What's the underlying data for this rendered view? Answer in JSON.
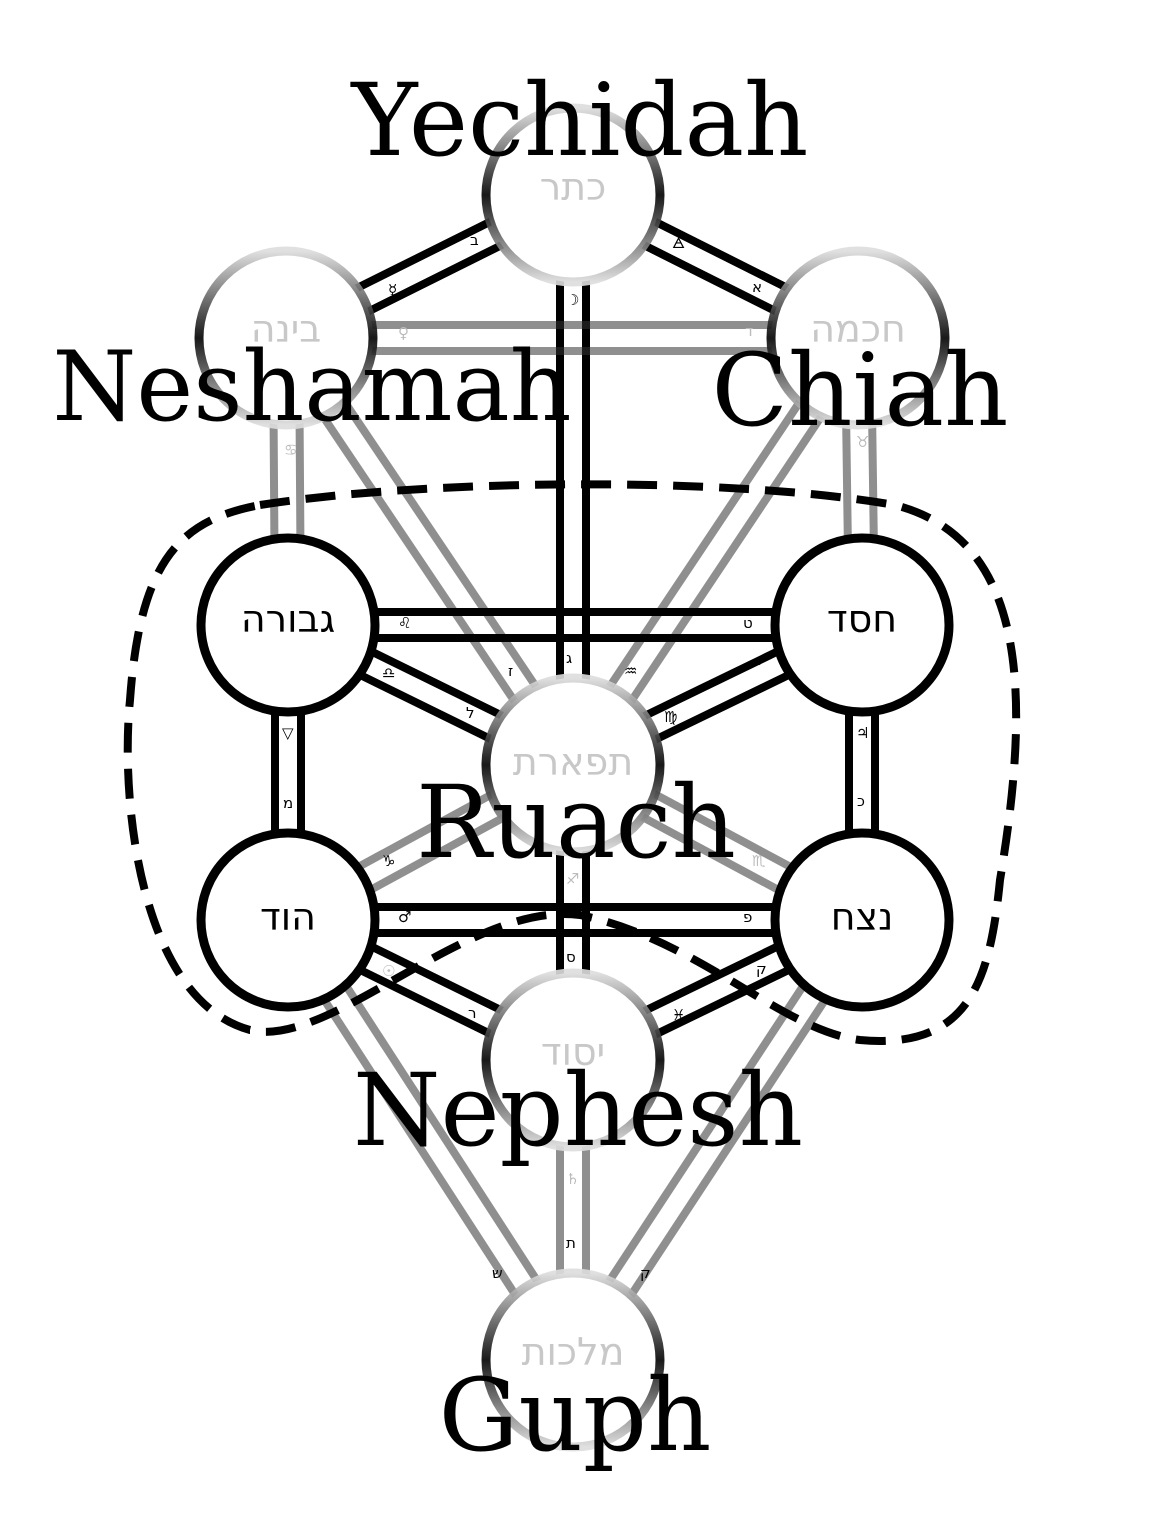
{
  "soul_labels": {
    "yechidah": "Yechidah",
    "neshamah": "Neshamah",
    "chiah": "Chiah",
    "ruach": "Ruach",
    "nephesh": "Nephesh",
    "guph": "Guph"
  },
  "sephiroth": {
    "keter": "כתר",
    "binah": "בינה",
    "chokmah": "חכמה",
    "gevurah": "גבורה",
    "chesed": "חסד",
    "tiferet": "תפארת",
    "hod": "הוד",
    "netzach": "נצח",
    "yesod": "יסוד",
    "malkuth": "מלכות"
  },
  "path_glyphs": {
    "keter_binah": "ב",
    "keter_binah_sym": "☿",
    "keter_chokmah": "א",
    "keter_chokmah_sym": "🜁",
    "keter_tiferet": "ג",
    "keter_tiferet_sym": "☽",
    "binah_chokmah": "ד",
    "binah_chokmah_sym": "♀",
    "binah_gevurah": "ח",
    "binah_gevurah_sym": "♋",
    "chokmah_chesed": "ו",
    "chokmah_chesed_sym": "♉",
    "gevurah_chesed": "ט",
    "gevurah_chesed_sym": "♌",
    "gevurah_tiferet": "ל",
    "gevurah_tiferet_sym": "♎",
    "chesed_tiferet": "י",
    "chesed_tiferet_sym": "♍",
    "binah_tiferet": "ז",
    "chokmah_tiferet": "ה",
    "chokmah_tiferet_sym": "♒",
    "gevurah_hod": "מ",
    "gevurah_hod_sym": "▽",
    "chesed_netzach": "כ",
    "chesed_netzach_sym": "♃",
    "hod_netzach": "פ",
    "hod_netzach_sym": "♂",
    "hod_yesod": "ר",
    "hod_yesod_sym": "☉",
    "netzach_yesod": "ק",
    "netzach_yesod_sym": "♓",
    "tiferet_yesod": "ס",
    "tiferet_yesod_sym": "♐",
    "yesod_malkuth": "ת",
    "yesod_malkuth_sym": "♄",
    "hod_malkuth": "ש",
    "netzach_malkuth": "ק",
    "tiferet_hod_sym": "♑",
    "tiferet_netzach_sym": "♏"
  }
}
